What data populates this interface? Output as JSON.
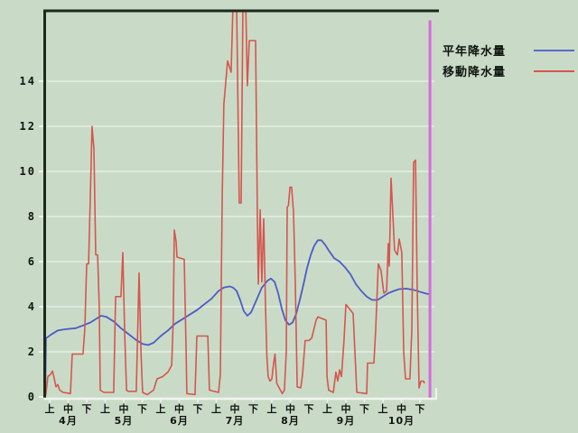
{
  "chart_data": {
    "type": "line",
    "title": "",
    "x_axis": {
      "unit": "period index (0 = 4月上, 1 period = 旬, 20 = 10月下)",
      "months": [
        "4月",
        "5月",
        "6月",
        "7月",
        "8月",
        "9月",
        "10月"
      ],
      "periods": [
        "上",
        "中",
        "下"
      ],
      "num_periods": 21
    },
    "y_axis": {
      "ticks": [
        0,
        2,
        4,
        6,
        8,
        10,
        12,
        14
      ],
      "gridline_values": [
        2,
        4,
        6,
        8,
        10,
        12,
        14
      ],
      "range": [
        0,
        17.1
      ],
      "grid": "on"
    },
    "legend": [
      {
        "label": "平年降水量",
        "color": "#5b69cc"
      },
      {
        "label": "移動降水量",
        "color": "#d5564e"
      }
    ],
    "cursor": {
      "x": 20.54,
      "top_value": 16.7,
      "color": "#d66ade"
    },
    "series": [
      {
        "name": "平年降水量",
        "color": "#4d5cc4",
        "points": [
          [
            -0.24,
            0
          ],
          [
            -0.2,
            2.6
          ],
          [
            0.05,
            2.75
          ],
          [
            0.44,
            2.95
          ],
          [
            0.83,
            3.0
          ],
          [
            1.41,
            3.05
          ],
          [
            1.9,
            3.2
          ],
          [
            2.2,
            3.3
          ],
          [
            2.49,
            3.45
          ],
          [
            2.78,
            3.6
          ],
          [
            3.07,
            3.55
          ],
          [
            3.46,
            3.35
          ],
          [
            3.85,
            3.05
          ],
          [
            4.24,
            2.8
          ],
          [
            4.63,
            2.55
          ],
          [
            5.02,
            2.35
          ],
          [
            5.32,
            2.3
          ],
          [
            5.61,
            2.4
          ],
          [
            6.0,
            2.7
          ],
          [
            6.39,
            2.95
          ],
          [
            6.78,
            3.25
          ],
          [
            7.17,
            3.45
          ],
          [
            7.56,
            3.65
          ],
          [
            7.95,
            3.85
          ],
          [
            8.34,
            4.1
          ],
          [
            8.73,
            4.35
          ],
          [
            9.12,
            4.7
          ],
          [
            9.41,
            4.85
          ],
          [
            9.71,
            4.9
          ],
          [
            9.9,
            4.85
          ],
          [
            10.1,
            4.7
          ],
          [
            10.29,
            4.3
          ],
          [
            10.49,
            3.8
          ],
          [
            10.68,
            3.6
          ],
          [
            10.88,
            3.75
          ],
          [
            11.17,
            4.3
          ],
          [
            11.46,
            4.85
          ],
          [
            11.76,
            5.15
          ],
          [
            11.95,
            5.25
          ],
          [
            12.15,
            5.1
          ],
          [
            12.34,
            4.6
          ],
          [
            12.54,
            3.9
          ],
          [
            12.73,
            3.4
          ],
          [
            12.93,
            3.2
          ],
          [
            13.12,
            3.3
          ],
          [
            13.32,
            3.7
          ],
          [
            13.51,
            4.3
          ],
          [
            13.71,
            5.0
          ],
          [
            13.9,
            5.7
          ],
          [
            14.1,
            6.3
          ],
          [
            14.29,
            6.7
          ],
          [
            14.49,
            6.95
          ],
          [
            14.68,
            6.95
          ],
          [
            14.88,
            6.75
          ],
          [
            15.07,
            6.5
          ],
          [
            15.37,
            6.15
          ],
          [
            15.66,
            6.0
          ],
          [
            15.95,
            5.75
          ],
          [
            16.24,
            5.45
          ],
          [
            16.54,
            5.0
          ],
          [
            16.83,
            4.7
          ],
          [
            17.12,
            4.45
          ],
          [
            17.41,
            4.3
          ],
          [
            17.71,
            4.3
          ],
          [
            18.0,
            4.45
          ],
          [
            18.29,
            4.6
          ],
          [
            18.59,
            4.7
          ],
          [
            18.88,
            4.78
          ],
          [
            19.27,
            4.8
          ],
          [
            19.66,
            4.75
          ],
          [
            20.05,
            4.65
          ],
          [
            20.34,
            4.58
          ],
          [
            20.54,
            4.55
          ]
        ]
      },
      {
        "name": "移動降水量",
        "color": "#d5564e",
        "points": [
          [
            -0.24,
            0
          ],
          [
            -0.2,
            0.15
          ],
          [
            -0.1,
            0.9
          ],
          [
            0.05,
            1.0
          ],
          [
            0.15,
            1.15
          ],
          [
            0.24,
            0.85
          ],
          [
            0.34,
            0.45
          ],
          [
            0.44,
            0.55
          ],
          [
            0.54,
            0.3
          ],
          [
            0.73,
            0.2
          ],
          [
            1.12,
            0.15
          ],
          [
            1.22,
            1.9
          ],
          [
            1.8,
            1.9
          ],
          [
            1.9,
            3.0
          ],
          [
            2.0,
            5.9
          ],
          [
            2.1,
            5.9
          ],
          [
            2.2,
            9.0
          ],
          [
            2.29,
            12.0
          ],
          [
            2.39,
            11.0
          ],
          [
            2.49,
            6.3
          ],
          [
            2.59,
            6.3
          ],
          [
            2.68,
            4.0
          ],
          [
            2.73,
            0.3
          ],
          [
            2.93,
            0.2
          ],
          [
            3.46,
            0.2
          ],
          [
            3.56,
            4.45
          ],
          [
            3.85,
            4.45
          ],
          [
            3.95,
            6.4
          ],
          [
            4.05,
            2.9
          ],
          [
            4.15,
            0.3
          ],
          [
            4.24,
            0.25
          ],
          [
            4.68,
            0.25
          ],
          [
            4.83,
            5.5
          ],
          [
            4.93,
            2.0
          ],
          [
            5.02,
            0.2
          ],
          [
            5.27,
            0.1
          ],
          [
            5.61,
            0.3
          ],
          [
            5.8,
            0.8
          ],
          [
            6.1,
            0.9
          ],
          [
            6.39,
            1.1
          ],
          [
            6.59,
            1.4
          ],
          [
            6.68,
            3.5
          ],
          [
            6.73,
            7.4
          ],
          [
            6.83,
            6.9
          ],
          [
            6.88,
            6.2
          ],
          [
            7.27,
            6.1
          ],
          [
            7.37,
            2.0
          ],
          [
            7.41,
            0.15
          ],
          [
            7.85,
            0.1
          ],
          [
            7.95,
            2.7
          ],
          [
            8.54,
            2.7
          ],
          [
            8.63,
            0.3
          ],
          [
            9.12,
            0.2
          ],
          [
            9.22,
            1.0
          ],
          [
            9.27,
            5.0
          ],
          [
            9.32,
            9.0
          ],
          [
            9.41,
            13.0
          ],
          [
            9.61,
            14.9
          ],
          [
            9.8,
            14.4
          ],
          [
            9.9,
            17.4
          ],
          [
            10.1,
            17.4
          ],
          [
            10.24,
            8.6
          ],
          [
            10.34,
            8.6
          ],
          [
            10.44,
            17.4
          ],
          [
            10.59,
            17.4
          ],
          [
            10.68,
            13.8
          ],
          [
            10.78,
            15.8
          ],
          [
            11.12,
            15.8
          ],
          [
            11.22,
            8.0
          ],
          [
            11.27,
            5.0
          ],
          [
            11.37,
            8.3
          ],
          [
            11.46,
            5.1
          ],
          [
            11.56,
            7.9
          ],
          [
            11.66,
            4.0
          ],
          [
            11.73,
            1.8
          ],
          [
            11.8,
            0.9
          ],
          [
            11.9,
            0.7
          ],
          [
            12.0,
            0.8
          ],
          [
            12.1,
            1.5
          ],
          [
            12.17,
            1.9
          ],
          [
            12.27,
            0.6
          ],
          [
            12.56,
            0.15
          ],
          [
            12.68,
            0.3
          ],
          [
            12.78,
            2.0
          ],
          [
            12.83,
            8.4
          ],
          [
            12.9,
            8.5
          ],
          [
            12.98,
            9.3
          ],
          [
            13.07,
            9.3
          ],
          [
            13.17,
            8.2
          ],
          [
            13.27,
            5.0
          ],
          [
            13.37,
            0.45
          ],
          [
            13.56,
            0.4
          ],
          [
            13.66,
            1.0
          ],
          [
            13.8,
            2.5
          ],
          [
            14.0,
            2.5
          ],
          [
            14.15,
            2.6
          ],
          [
            14.39,
            3.4
          ],
          [
            14.49,
            3.55
          ],
          [
            14.93,
            3.4
          ],
          [
            14.98,
            0.9
          ],
          [
            15.07,
            0.3
          ],
          [
            15.32,
            0.2
          ],
          [
            15.46,
            1.1
          ],
          [
            15.56,
            0.7
          ],
          [
            15.66,
            1.2
          ],
          [
            15.76,
            0.9
          ],
          [
            15.9,
            2.5
          ],
          [
            16.0,
            4.1
          ],
          [
            16.2,
            3.9
          ],
          [
            16.39,
            3.7
          ],
          [
            16.49,
            2.0
          ],
          [
            16.59,
            0.2
          ],
          [
            17.12,
            0.15
          ],
          [
            17.17,
            1.5
          ],
          [
            17.51,
            1.5
          ],
          [
            17.61,
            3.0
          ],
          [
            17.75,
            5.9
          ],
          [
            17.9,
            5.6
          ],
          [
            18.05,
            4.6
          ],
          [
            18.2,
            4.7
          ],
          [
            18.29,
            6.8
          ],
          [
            18.34,
            5.8
          ],
          [
            18.44,
            9.7
          ],
          [
            18.54,
            8.0
          ],
          [
            18.63,
            6.5
          ],
          [
            18.78,
            6.3
          ],
          [
            18.88,
            7.0
          ],
          [
            19.02,
            6.4
          ],
          [
            19.12,
            2.0
          ],
          [
            19.22,
            0.8
          ],
          [
            19.46,
            0.8
          ],
          [
            19.56,
            3.0
          ],
          [
            19.66,
            10.4
          ],
          [
            19.76,
            10.5
          ],
          [
            19.85,
            5.0
          ],
          [
            19.95,
            0.4
          ],
          [
            20.05,
            0.7
          ],
          [
            20.2,
            0.7
          ],
          [
            20.24,
            0.6
          ]
        ]
      }
    ]
  },
  "colors": {
    "background": "#c9dbc7",
    "gridline": "#e6efe4",
    "frame_dark": "#1c2a1c",
    "frame_light": "#eff6ee",
    "axis_text": "#101510",
    "series_normal": "#4d5cc4",
    "series_moving": "#d5564e",
    "cursor": "#d66ade"
  }
}
